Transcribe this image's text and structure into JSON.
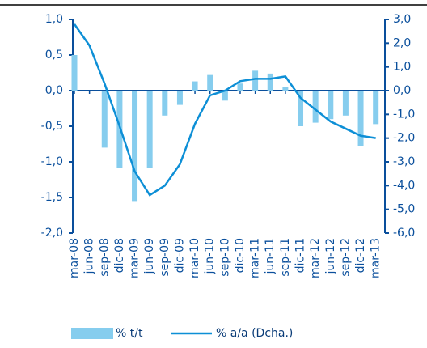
{
  "chart_data": {
    "type": "bar-line",
    "categories": [
      "mar-08",
      "jun-08",
      "sep-08",
      "dic-08",
      "mar-09",
      "jun-09",
      "sep-09",
      "dic-09",
      "mar-10",
      "jun-10",
      "sep-10",
      "dic-10",
      "mar-11",
      "jun-11",
      "sep-11",
      "dic-11",
      "mar-12",
      "jun-12",
      "sep-12",
      "dic-12",
      "mar-13"
    ],
    "series": [
      {
        "name": "% t/t",
        "type": "bar",
        "color": "#86cdee",
        "values": [
          0.5,
          0.0,
          -0.8,
          -1.08,
          -1.55,
          -1.08,
          -0.35,
          -0.2,
          0.13,
          0.22,
          -0.14,
          0.1,
          0.28,
          0.24,
          0.05,
          -0.5,
          -0.45,
          -0.4,
          -0.35,
          -0.78,
          -0.47
        ]
      },
      {
        "name": "% a/a (Dcha.)",
        "type": "line",
        "axis": "y2",
        "color": "#0d8fd6",
        "values": [
          2.8,
          1.9,
          0.3,
          -1.5,
          -3.4,
          -4.4,
          -4.0,
          -3.1,
          -1.4,
          -0.2,
          0.0,
          0.4,
          0.5,
          0.5,
          0.6,
          -0.3,
          -0.8,
          -1.3,
          -1.6,
          -1.9,
          -2.0
        ]
      }
    ],
    "ylim": [
      -2,
      1
    ],
    "yticks": [
      {
        "value": -2,
        "label": "-2,0"
      },
      {
        "value": -1.5,
        "label": "-1,5"
      },
      {
        "value": -1,
        "label": "-1,0"
      },
      {
        "value": -0.5,
        "label": "-0,5"
      },
      {
        "value": 0,
        "label": "0,0"
      },
      {
        "value": 0.5,
        "label": "0,5"
      },
      {
        "value": 1,
        "label": "1,0"
      }
    ],
    "y2lim": [
      -6,
      3
    ],
    "y2ticks": [
      {
        "value": -6,
        "label": "-6,0"
      },
      {
        "value": -5,
        "label": "-5,0"
      },
      {
        "value": -4,
        "label": "-4,0"
      },
      {
        "value": -3,
        "label": "-3,0"
      },
      {
        "value": -2,
        "label": "-2,0"
      },
      {
        "value": -1,
        "label": "-1,0"
      },
      {
        "value": 0,
        "label": "0,0"
      },
      {
        "value": 1,
        "label": "1,0"
      },
      {
        "value": 2,
        "label": "2,0"
      },
      {
        "value": 3,
        "label": "3,0"
      }
    ],
    "legend": "bottom"
  }
}
